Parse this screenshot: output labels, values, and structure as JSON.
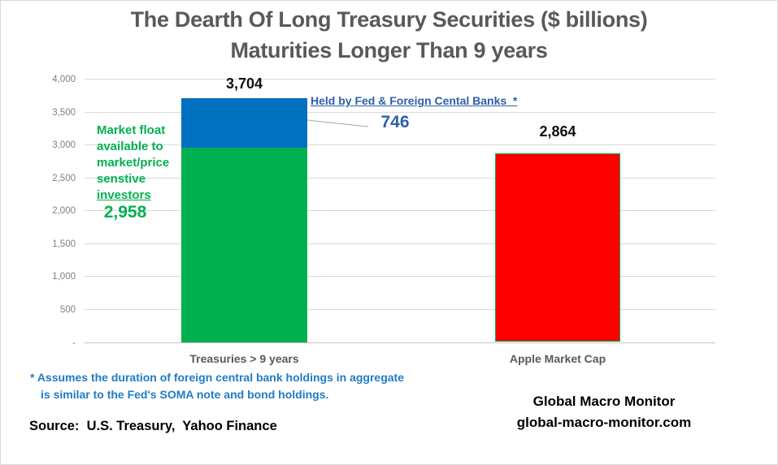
{
  "title": {
    "line1": "The Dearth Of Long Treasury Securities ($ billions)",
    "line2": "Maturities Longer Than 9 years"
  },
  "chart_data": {
    "type": "bar",
    "stacked": true,
    "categories": [
      "Treasuries > 9 years",
      "Apple Market Cap"
    ],
    "series": [
      {
        "name": "Market float available to market/price senstive investors",
        "color": "#00B050",
        "values": [
          2958,
          null
        ]
      },
      {
        "name": "Held by Fed & Foreign Cental Banks",
        "color": "#0070C0",
        "values": [
          746,
          null
        ]
      },
      {
        "name": "Apple Market Cap",
        "color": "#FF0000",
        "values": [
          null,
          2864
        ]
      }
    ],
    "totals": [
      3704,
      2864
    ],
    "ylim": [
      0,
      4000
    ],
    "ytick_interval": 500,
    "yticks": [
      "4,000",
      "3,500",
      "3,000",
      "2,500",
      "2,000",
      "1,500",
      "1,000",
      "500",
      "-"
    ],
    "grid": true,
    "legend": "none"
  },
  "labels": {
    "bar1_total": "3,704",
    "bar2_total": "2,864",
    "green_value": "2,958",
    "blue_value": "746",
    "green_annotation_lines": [
      "Market float",
      "available to",
      "market/price",
      "senstive"
    ],
    "green_annotation_underlined": "investors",
    "blue_annotation": "Held by Fed & Foreign Cental Banks  *",
    "category1": "Treasuries > 9 years",
    "category2": "Apple Market Cap"
  },
  "footnote": {
    "line1": "* Assumes the duration of foreign central bank holdings in aggregate",
    "line2": "is similar to the Fed's SOMA note and bond holdings."
  },
  "source": "Source:  U.S. Treasury,  Yahoo Finance",
  "branding": {
    "line1": "Global Macro Monitor",
    "line2": "global-macro-monitor.com"
  },
  "colors": {
    "title_text": "#595959",
    "axis_text": "#7F7F7F",
    "category_text": "#595959",
    "green": "#00B050",
    "blue_bar": "#0070C0",
    "red": "#FF0000",
    "annotation_blue": "#2E5FA8",
    "footnote_blue": "#1F7BC7",
    "value_text": "#111111",
    "gridline": "#D9D9D9",
    "connector_line": "#A6A6A6"
  }
}
